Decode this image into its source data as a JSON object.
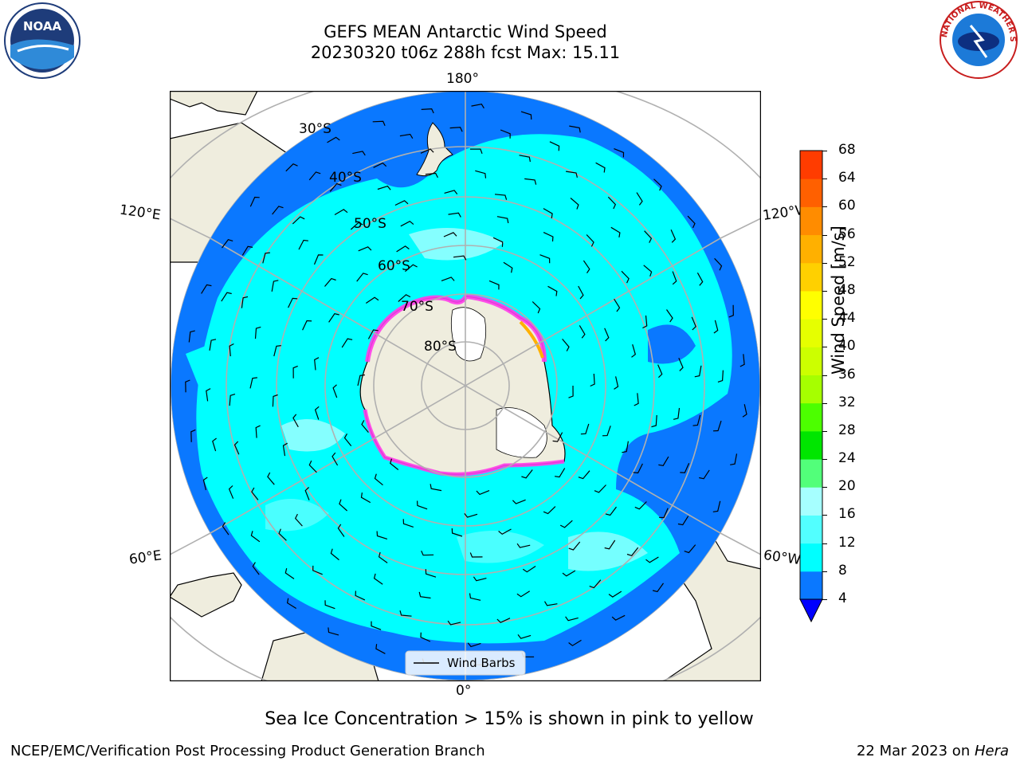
{
  "title": {
    "line1": "GEFS MEAN Antarctic Wind Speed",
    "line2": "20230320 t06z 288h fcst   Max: 15.11"
  },
  "map": {
    "projection": "south-polar-stereographic",
    "lon_labels": [
      "180°",
      "120°E",
      "120°W",
      "60°E",
      "60°W",
      "0°"
    ],
    "lat_labels": [
      "30°S",
      "40°S",
      "50°S",
      "60°S",
      "70°S",
      "80°S"
    ],
    "legend_label": "Wind Barbs"
  },
  "colorbar": {
    "label": "Wind Speed [m/s]",
    "ticks": [
      "4",
      "8",
      "12",
      "16",
      "20",
      "24",
      "28",
      "32",
      "36",
      "40",
      "44",
      "48",
      "52",
      "56",
      "60",
      "64",
      "68"
    ],
    "colors": [
      "#0a78ff",
      "#00ffff",
      "#52ffff",
      "#a6ffff",
      "#52ff7a",
      "#00e600",
      "#4cff00",
      "#a6ff00",
      "#ccff00",
      "#e6ff00",
      "#ffff00",
      "#ffd000",
      "#ffb000",
      "#ff8c00",
      "#ff6000",
      "#ff3c00",
      "#ff0000"
    ],
    "under_color": "#0000ff"
  },
  "caption": "Sea Ice Concentration > 15% is shown in pink to yellow",
  "footer": {
    "left": "NCEP/EMC/Verification Post Processing Product Generation Branch",
    "right_prefix": "22 Mar 2023 on ",
    "right_machine": "Hera"
  },
  "logos": {
    "noaa_text": "NOAA",
    "nws_text": "NATIONAL WEATHER SERVICE"
  }
}
